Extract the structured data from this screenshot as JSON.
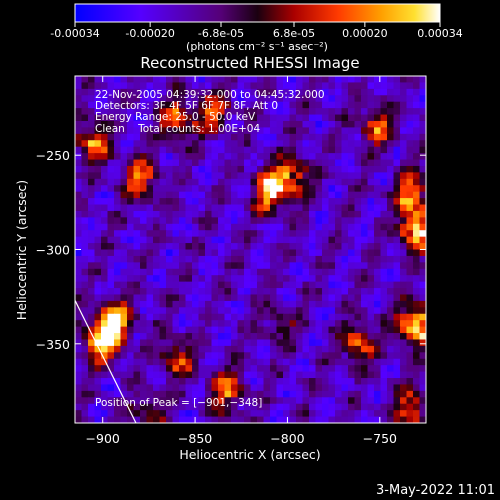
{
  "colorbar": {
    "min": -0.00034,
    "max": 0.00034,
    "ticks": [
      "-0.00034",
      "-0.00020",
      "-6.8e-05",
      "6.8e-05",
      "0.00020",
      "0.00034"
    ],
    "tick_values": [
      -0.00034,
      -0.0002,
      -6.8e-05,
      6.8e-05,
      0.0002,
      0.00034
    ],
    "unit_label": "(photons cm⁻² s⁻¹ asec⁻²)"
  },
  "chart_data": {
    "type": "heatmap",
    "title": "Reconstructed RHESSI Image",
    "xlabel": "Heliocentric X (arcsec)",
    "ylabel": "Heliocentric Y (arcsec)",
    "xlim": [
      -915,
      -725
    ],
    "ylim": [
      -392,
      -208
    ],
    "xticks": [
      -900,
      -850,
      -800,
      -750
    ],
    "xtick_labels": [
      "−900",
      "−850",
      "−800",
      "−750"
    ],
    "yticks": [
      -250,
      -300,
      -350
    ],
    "ytick_labels": [
      "−250",
      "−300",
      "−350"
    ],
    "colormap": "rainbow-to-hot (blue, purple, red, orange, yellow, white)",
    "peak": [
      -901,
      -348
    ],
    "limb_line": [
      [
        -915,
        -327
      ],
      [
        -882,
        -392
      ]
    ],
    "info_lines": [
      "22-Nov-2005 04:39:32.000 to 04:45:32.000",
      "Detectors: 3F 4F 5F 6F 7F 8F, Att 0",
      "Energy Range: 25.0 - 50.0 keV",
      "Clean    Total counts: 1.00E+04"
    ],
    "peak_text": "Position of Peak = [−901,−348]",
    "blobs": [
      {
        "x": -900,
        "y": -348,
        "level": 0.95
      },
      {
        "x": -893,
        "y": -338,
        "level": 0.7
      },
      {
        "x": -905,
        "y": -243,
        "level": 0.65
      },
      {
        "x": -880,
        "y": -262,
        "level": 0.6
      },
      {
        "x": -860,
        "y": -232,
        "level": 0.55
      },
      {
        "x": -840,
        "y": -227,
        "level": 0.5
      },
      {
        "x": -810,
        "y": -268,
        "level": 0.8
      },
      {
        "x": -797,
        "y": -262,
        "level": 0.6
      },
      {
        "x": -752,
        "y": -235,
        "level": 0.55
      },
      {
        "x": -733,
        "y": -270,
        "level": 0.6
      },
      {
        "x": -730,
        "y": -290,
        "level": 0.75
      },
      {
        "x": -731,
        "y": -340,
        "level": 0.9
      },
      {
        "x": -762,
        "y": -350,
        "level": 0.55
      },
      {
        "x": -833,
        "y": -375,
        "level": 0.6
      },
      {
        "x": -860,
        "y": -358,
        "level": 0.45
      },
      {
        "x": -733,
        "y": -385,
        "level": 0.55
      },
      {
        "x": -875,
        "y": -388,
        "level": 0.35
      },
      {
        "x": -804,
        "y": -340,
        "level": 0.3
      }
    ]
  },
  "timestamp": "3-May-2022 11:01"
}
